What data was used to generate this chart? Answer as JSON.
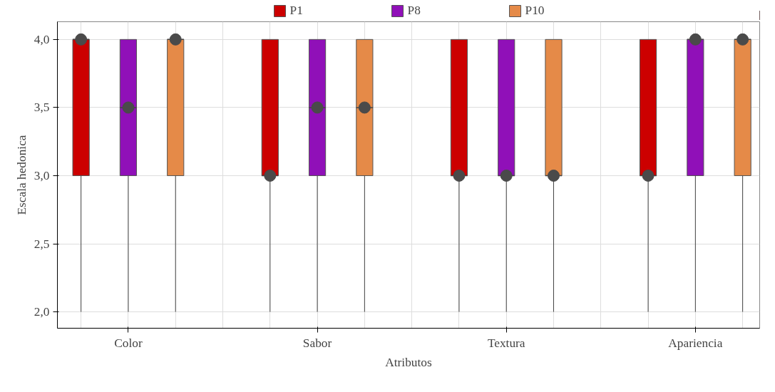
{
  "chart_data": {
    "type": "box",
    "xlabel": "Atributos",
    "ylabel": "Escala hedonica",
    "categories": [
      "Color",
      "Sabor",
      "Textura",
      "Apariencia"
    ],
    "series": [
      {
        "name": "P1",
        "color": "#cc0000",
        "boxes": [
          {
            "low": 2,
            "q1": 3,
            "median": 4,
            "q3": 4,
            "high": 4,
            "mean": 4
          },
          {
            "low": 2,
            "q1": 3,
            "median": 3,
            "q3": 4,
            "high": 4,
            "mean": 3
          },
          {
            "low": 2,
            "q1": 3,
            "median": 3,
            "q3": 4,
            "high": 4,
            "mean": 3
          },
          {
            "low": 2,
            "q1": 3,
            "median": 3,
            "q3": 4,
            "high": 4,
            "mean": 3
          }
        ]
      },
      {
        "name": "P8",
        "color": "#9010b8",
        "boxes": [
          {
            "low": 2,
            "q1": 3,
            "median": 3.5,
            "q3": 4,
            "high": 4,
            "mean": 3.5
          },
          {
            "low": 2,
            "q1": 3,
            "median": 3.5,
            "q3": 4,
            "high": 4,
            "mean": 3.5
          },
          {
            "low": 2,
            "q1": 3,
            "median": 3,
            "q3": 4,
            "high": 4,
            "mean": 3
          },
          {
            "low": 2,
            "q1": 3,
            "median": 4,
            "q3": 4,
            "high": 4,
            "mean": 4
          }
        ]
      },
      {
        "name": "P10",
        "color": "#e58a48",
        "boxes": [
          {
            "low": 2,
            "q1": 3,
            "median": 4,
            "q3": 4,
            "high": 4,
            "mean": 4
          },
          {
            "low": 2,
            "q1": 3,
            "median": 3.5,
            "q3": 4,
            "high": 4,
            "mean": 3.5
          },
          {
            "low": 2,
            "q1": 3,
            "median": 3,
            "q3": 4,
            "high": 4,
            "mean": 3
          },
          {
            "low": 2,
            "q1": 3,
            "median": 4,
            "q3": 4,
            "high": 4,
            "mean": 4
          }
        ]
      }
    ],
    "ylim": [
      1.88,
      4.13
    ],
    "yticks": [
      {
        "value": 2,
        "label": "2,0"
      },
      {
        "value": 2.5,
        "label": "2,5"
      },
      {
        "value": 3,
        "label": "3,0"
      },
      {
        "value": 3.5,
        "label": "3,5"
      },
      {
        "value": 4,
        "label": "4,0"
      }
    ],
    "grid": true,
    "legend": "top"
  }
}
